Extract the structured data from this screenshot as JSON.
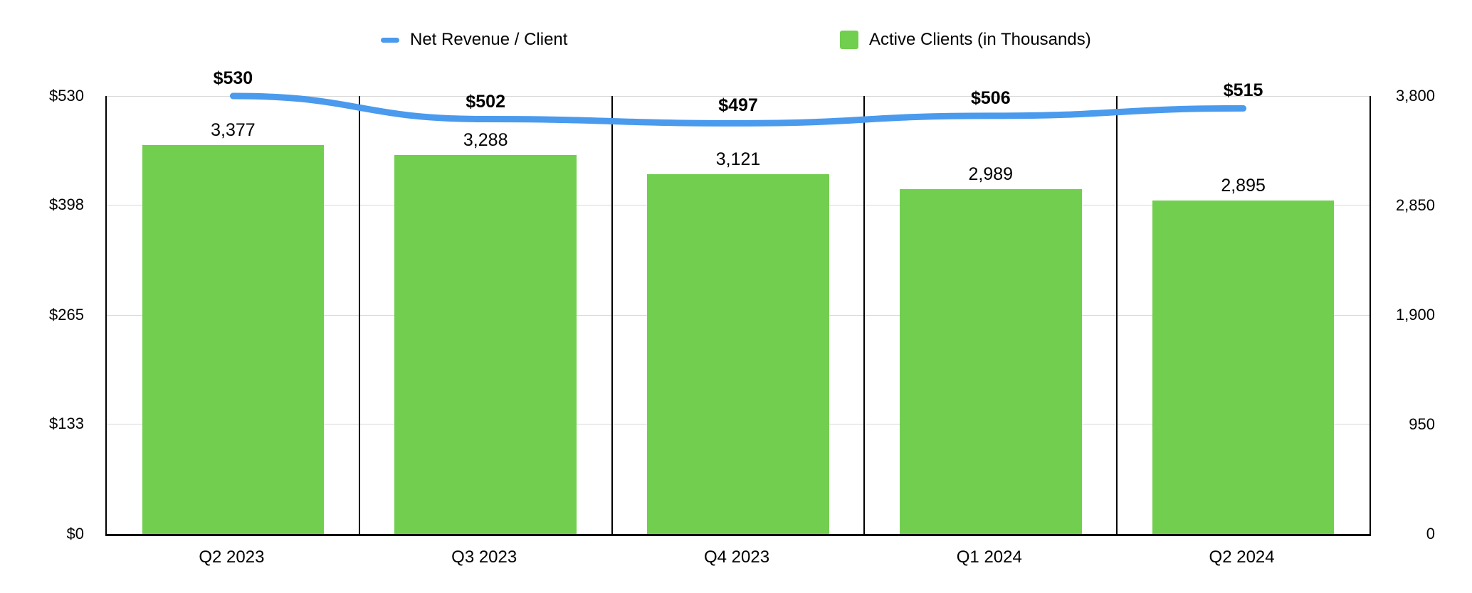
{
  "legend": [
    {
      "label": "Net Revenue / Client",
      "color": "#4A9AEE",
      "marker": "dash"
    },
    {
      "label": "Active Clients (in Thousands)",
      "color": "#72CE4F",
      "marker": "square"
    }
  ],
  "chart_data": {
    "type": "combo",
    "title": "",
    "categories": [
      "Q2 2023",
      "Q3 2023",
      "Q4 2023",
      "Q1 2024",
      "Q2 2024"
    ],
    "series": [
      {
        "name": "Net Revenue / Client",
        "type": "line",
        "axis": "left",
        "color": "#4A9AEE",
        "values": [
          530,
          502,
          497,
          506,
          515
        ],
        "labels": [
          "$530",
          "$502",
          "$497",
          "$506",
          "$515"
        ]
      },
      {
        "name": "Active Clients (in Thousands)",
        "type": "bar",
        "axis": "right",
        "color": "#72CE4F",
        "values": [
          3377,
          3288,
          3121,
          2989,
          2895
        ],
        "labels": [
          "3,377",
          "3,288",
          "3,121",
          "2,989",
          "2,895"
        ]
      }
    ],
    "left_axis": {
      "min": 0,
      "max": 530,
      "values": [
        0,
        133,
        265,
        398,
        530
      ],
      "ticks": [
        "$0",
        "$133",
        "$265",
        "$398",
        "$530"
      ]
    },
    "right_axis": {
      "min": 0,
      "max": 3800,
      "values": [
        0,
        950,
        1900,
        2850,
        3800
      ],
      "ticks": [
        "0",
        "950",
        "1,900",
        "2,850",
        "3,800"
      ]
    },
    "grid": true,
    "legend_position": "top"
  }
}
